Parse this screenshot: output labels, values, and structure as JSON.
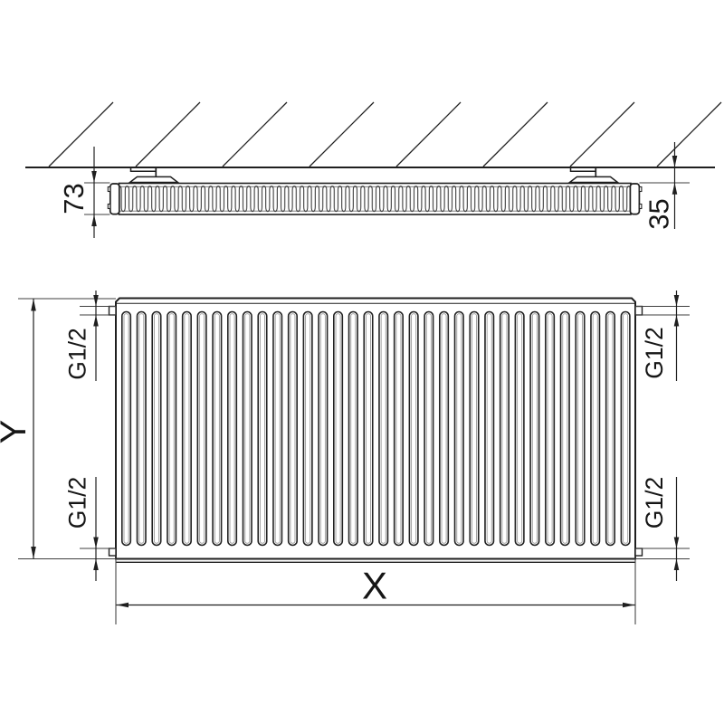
{
  "labels": {
    "depth": "73",
    "wall_distance": "35",
    "height": "Y",
    "length": "X",
    "connection": "G1/2"
  },
  "colors": {
    "line": "#1f1f1f",
    "thin_line": "#3f3f3f",
    "rib_inner": "#9a9a9a",
    "background": "#ffffff"
  }
}
